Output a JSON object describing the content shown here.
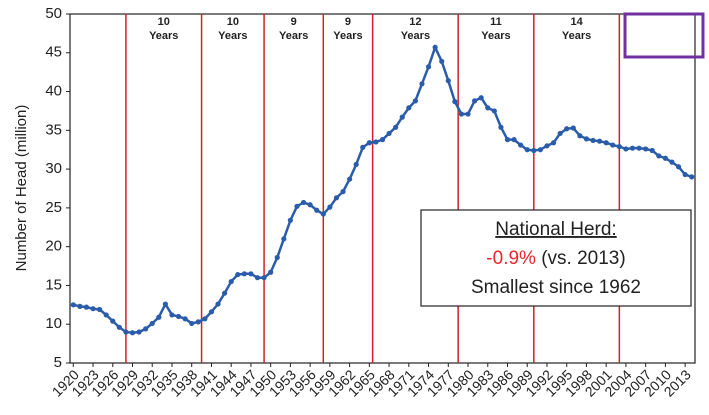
{
  "chart_data": {
    "type": "line",
    "y_label": "Number of Head (million)",
    "x": [
      1920,
      1921,
      1922,
      1923,
      1924,
      1925,
      1926,
      1927,
      1928,
      1929,
      1930,
      1931,
      1932,
      1933,
      1934,
      1935,
      1936,
      1937,
      1938,
      1939,
      1940,
      1941,
      1942,
      1943,
      1944,
      1945,
      1946,
      1947,
      1948,
      1949,
      1950,
      1951,
      1952,
      1953,
      1954,
      1955,
      1956,
      1957,
      1958,
      1959,
      1960,
      1961,
      1962,
      1963,
      1964,
      1965,
      1966,
      1967,
      1968,
      1969,
      1970,
      1971,
      1972,
      1973,
      1974,
      1975,
      1976,
      1977,
      1978,
      1979,
      1980,
      1981,
      1982,
      1983,
      1984,
      1985,
      1986,
      1987,
      1988,
      1989,
      1990,
      1991,
      1992,
      1993,
      1994,
      1995,
      1996,
      1997,
      1998,
      1999,
      2000,
      2001,
      2002,
      2003,
      2004,
      2005,
      2006,
      2007,
      2008,
      2009,
      2010,
      2011,
      2012,
      2013,
      2014
    ],
    "series": [
      {
        "color": "#2a5caa",
        "values": [
          12.5,
          12.3,
          12.2,
          12.0,
          11.9,
          11.2,
          10.4,
          9.6,
          9.0,
          8.9,
          9.0,
          9.4,
          10.1,
          10.9,
          12.6,
          11.2,
          11.0,
          10.7,
          10.1,
          10.3,
          10.7,
          11.6,
          12.6,
          14.0,
          15.5,
          16.4,
          16.5,
          16.5,
          16.0,
          16.0,
          16.7,
          18.6,
          21.0,
          23.4,
          25.2,
          25.7,
          25.4,
          24.7,
          24.2,
          25.1,
          26.3,
          27.1,
          28.7,
          30.6,
          32.8,
          33.4,
          33.5,
          33.8,
          34.6,
          35.4,
          36.7,
          37.9,
          38.8,
          41.0,
          43.2,
          45.7,
          43.9,
          41.4,
          38.7,
          37.1,
          37.1,
          38.8,
          39.2,
          37.9,
          37.5,
          35.4,
          33.8,
          33.8,
          33.1,
          32.5,
          32.4,
          32.5,
          33.0,
          33.4,
          34.6,
          35.2,
          35.3,
          34.3,
          33.9,
          33.7,
          33.6,
          33.4,
          33.1,
          32.9,
          32.6,
          32.7,
          32.7,
          32.6,
          32.4,
          31.7,
          31.4,
          30.9,
          30.3,
          29.3,
          29.0
        ]
      }
    ],
    "xlim": [
      1919.5,
      2014.5
    ],
    "xticks": [
      1920,
      1923,
      1926,
      1929,
      1932,
      1935,
      1938,
      1941,
      1944,
      1947,
      1950,
      1953,
      1956,
      1959,
      1962,
      1965,
      1968,
      1971,
      1974,
      1977,
      1980,
      1983,
      1986,
      1989,
      1992,
      1995,
      1998,
      2001,
      2004,
      2007,
      2010,
      2013
    ],
    "ylim": [
      5,
      50
    ],
    "yticks": [
      5,
      10,
      15,
      20,
      25,
      30,
      35,
      40,
      45,
      50
    ],
    "cycle_lines": [
      1928,
      1939.5,
      1949,
      1958,
      1965.5,
      1978.5,
      1990,
      2003
    ],
    "cycle_color": "#d0202a",
    "cycles": [
      {
        "years": "10",
        "unit": "Years"
      },
      {
        "years": "10",
        "unit": "Years"
      },
      {
        "years": "9",
        "unit": "Years"
      },
      {
        "years": "9",
        "unit": "Years"
      },
      {
        "years": "12",
        "unit": "Years"
      },
      {
        "years": "11",
        "unit": "Years"
      },
      {
        "years": "14",
        "unit": "Years"
      }
    ],
    "annotation": {
      "title": "National Herd:",
      "change": "-0.9%",
      "comparison": " (vs. 2013)",
      "note": "Smallest since 1962"
    }
  }
}
